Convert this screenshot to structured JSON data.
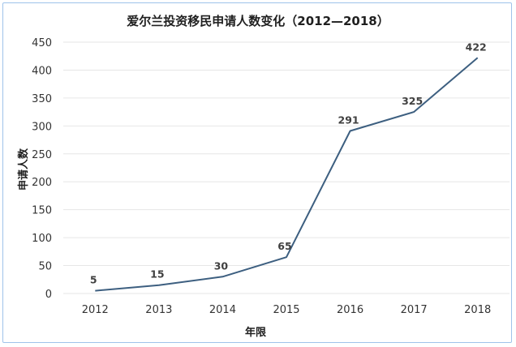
{
  "chart_data": {
    "type": "line",
    "title": "爱尔兰投资移民申请人数变化（2012—2018）",
    "xlabel": "年限",
    "ylabel": "申请人数",
    "categories": [
      "2012",
      "2013",
      "2014",
      "2015",
      "2016",
      "2017",
      "2018"
    ],
    "values": [
      5,
      15,
      30,
      65,
      291,
      325,
      422
    ],
    "ylim": [
      0,
      450
    ],
    "yticks": [
      0,
      50,
      100,
      150,
      200,
      250,
      300,
      350,
      400,
      450
    ],
    "grid": true,
    "legend": "none",
    "line_color": "#3d5f80"
  }
}
